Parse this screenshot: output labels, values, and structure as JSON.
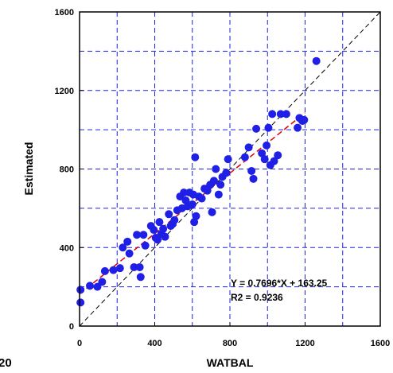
{
  "panel_label": "20",
  "chart_data": {
    "type": "scatter",
    "xlabel": "WATBAL",
    "ylabel": "Estimated",
    "xlim": [
      0,
      1600
    ],
    "ylim": [
      0,
      1600
    ],
    "x_ticks": [
      0,
      400,
      800,
      1200,
      1600
    ],
    "y_ticks": [
      0,
      400,
      800,
      1200,
      1600
    ],
    "grid": true,
    "grid_step": 200,
    "colors": {
      "points": "#1f1fe6",
      "grid": "#2020e0",
      "fit_line": "#e00000",
      "identity_line": "#000000"
    },
    "fit": {
      "slope": 0.7696,
      "intercept": 163.25,
      "x_range": [
        0,
        1200
      ]
    },
    "identity_line": true,
    "annotations": [
      "Y = 0.7696*X + 163.25",
      "R2 = 0.9236"
    ],
    "points": [
      [
        5,
        120
      ],
      [
        5,
        185
      ],
      [
        55,
        205
      ],
      [
        95,
        200
      ],
      [
        120,
        225
      ],
      [
        135,
        280
      ],
      [
        180,
        285
      ],
      [
        215,
        295
      ],
      [
        230,
        400
      ],
      [
        255,
        430
      ],
      [
        265,
        370
      ],
      [
        290,
        300
      ],
      [
        305,
        465
      ],
      [
        320,
        300
      ],
      [
        325,
        250
      ],
      [
        340,
        465
      ],
      [
        350,
        410
      ],
      [
        380,
        510
      ],
      [
        395,
        490
      ],
      [
        405,
        450
      ],
      [
        415,
        440
      ],
      [
        425,
        530
      ],
      [
        435,
        470
      ],
      [
        445,
        495
      ],
      [
        455,
        455
      ],
      [
        475,
        570
      ],
      [
        485,
        510
      ],
      [
        495,
        520
      ],
      [
        505,
        540
      ],
      [
        520,
        590
      ],
      [
        535,
        660
      ],
      [
        545,
        600
      ],
      [
        555,
        680
      ],
      [
        565,
        640
      ],
      [
        575,
        610
      ],
      [
        585,
        680
      ],
      [
        600,
        620
      ],
      [
        605,
        670
      ],
      [
        610,
        530
      ],
      [
        615,
        860
      ],
      [
        620,
        560
      ],
      [
        635,
        660
      ],
      [
        650,
        650
      ],
      [
        665,
        700
      ],
      [
        680,
        690
      ],
      [
        695,
        720
      ],
      [
        705,
        580
      ],
      [
        715,
        740
      ],
      [
        725,
        800
      ],
      [
        740,
        670
      ],
      [
        750,
        720
      ],
      [
        760,
        760
      ],
      [
        780,
        780
      ],
      [
        790,
        850
      ],
      [
        880,
        860
      ],
      [
        900,
        910
      ],
      [
        915,
        790
      ],
      [
        925,
        750
      ],
      [
        940,
        1005
      ],
      [
        970,
        880
      ],
      [
        985,
        850
      ],
      [
        995,
        920
      ],
      [
        1005,
        1010
      ],
      [
        1015,
        820
      ],
      [
        1025,
        1080
      ],
      [
        1035,
        840
      ],
      [
        1055,
        870
      ],
      [
        1070,
        1080
      ],
      [
        1100,
        1080
      ],
      [
        1160,
        1010
      ],
      [
        1170,
        1060
      ],
      [
        1185,
        1045
      ],
      [
        1195,
        1050
      ],
      [
        1260,
        1350
      ]
    ]
  }
}
